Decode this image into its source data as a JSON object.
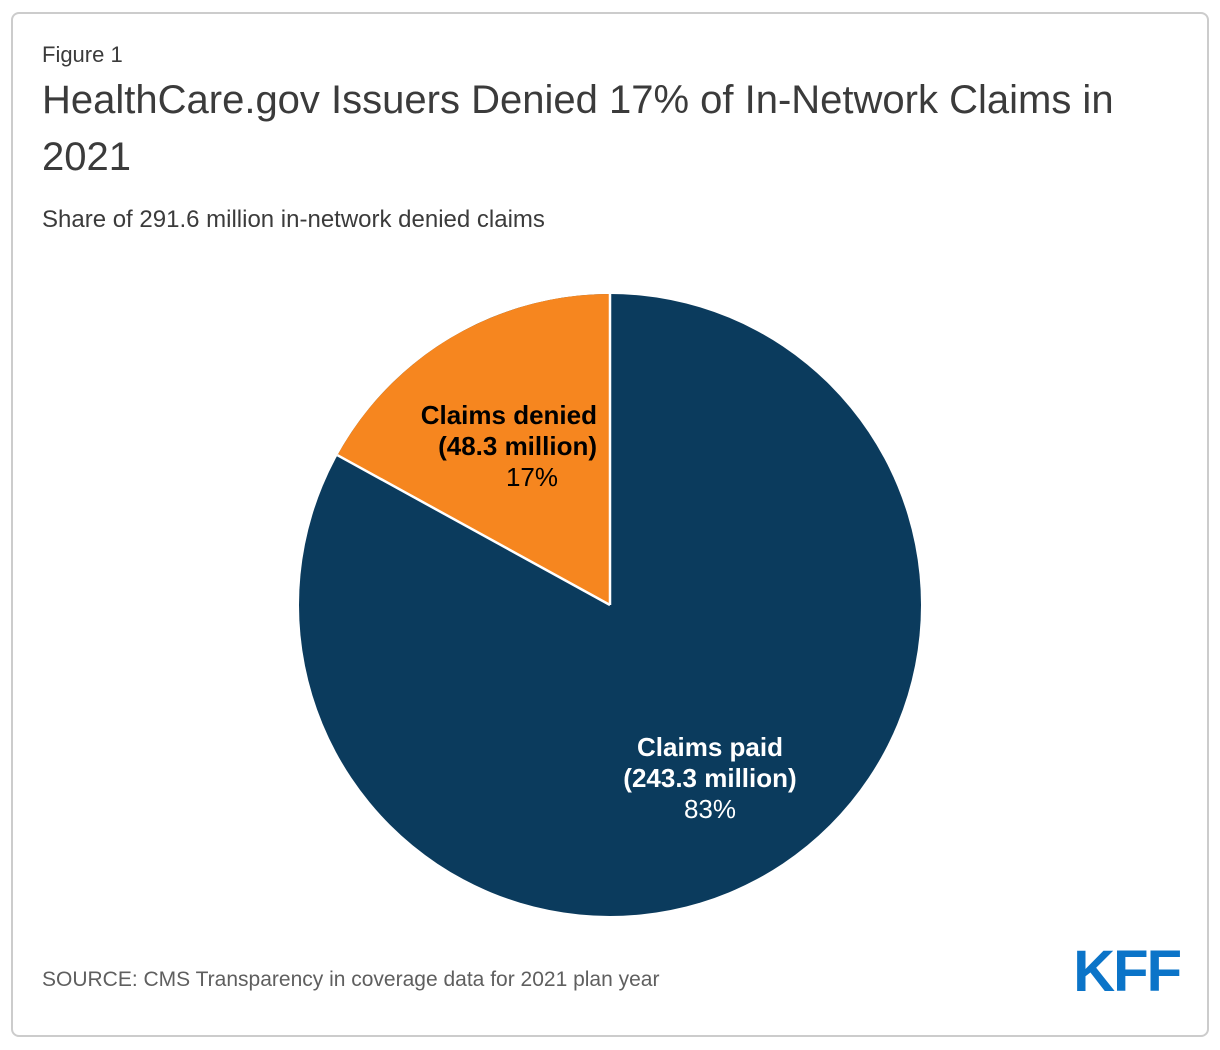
{
  "figure_label": "Figure 1",
  "title": "HealthCare.gov Issuers Denied 17% of In-Network Claims in 2021",
  "subtitle": "Share of 291.6 million in-network denied claims",
  "source": "SOURCE: CMS Transparency in coverage data for 2021 plan year",
  "logo_text": "KFF",
  "colors": {
    "paid_slice": "#0b3b5d",
    "denied_slice": "#f6861f",
    "slice_separator": "#ffffff",
    "logo_blue": "#0b74c8",
    "title_text": "#3b3b3b",
    "source_text": "#5f5f5f",
    "frame_border": "#cccccc"
  },
  "chart_data": {
    "type": "pie",
    "title": "HealthCare.gov Issuers Denied 17% of In-Network Claims in 2021",
    "subtitle": "Share of 291.6 million in-network denied claims",
    "total_claims_millions": 291.6,
    "start_angle_deg": 0,
    "direction": "clockwise",
    "legend_position": "labels-on-slices",
    "slices": [
      {
        "label": "Claims paid",
        "sublabel": "(243.3 million)",
        "percent_label": "83%",
        "percent": 83,
        "value_millions": 243.3,
        "color": "#0b3b5d",
        "label_color": "#ffffff"
      },
      {
        "label": "Claims denied",
        "sublabel": "(48.3 million)",
        "percent_label": "17%",
        "percent": 17,
        "value_millions": 48.3,
        "color": "#f6861f",
        "label_color": "#000000"
      }
    ]
  }
}
